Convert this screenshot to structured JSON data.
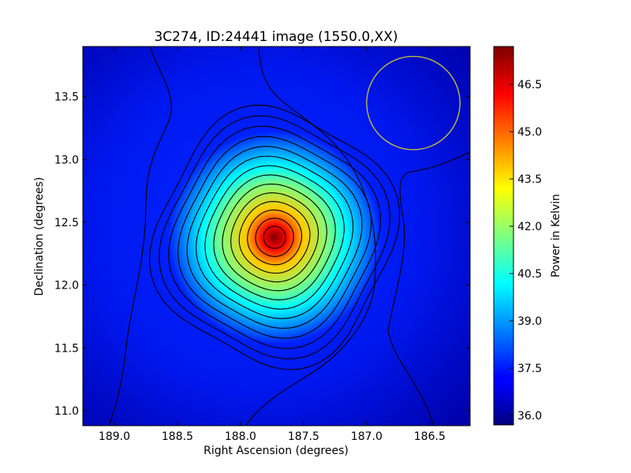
{
  "chart_data": {
    "type": "heatmap",
    "title": "3C274, ID:24441 image (1550.0,XX)",
    "xlabel": "Right Ascension (degrees)",
    "ylabel": "Declination (degrees)",
    "xlim": [
      189.25,
      186.18
    ],
    "ylim": [
      10.88,
      13.9
    ],
    "x_ticks": [
      "189.0",
      "188.5",
      "188.0",
      "187.5",
      "187.0",
      "186.5"
    ],
    "x_tick_values": [
      189.0,
      188.5,
      188.0,
      187.5,
      187.0,
      186.5
    ],
    "y_ticks": [
      "11.0",
      "11.5",
      "12.0",
      "12.5",
      "13.0",
      "13.5"
    ],
    "y_tick_values": [
      11.0,
      11.5,
      12.0,
      12.5,
      13.0,
      13.5
    ],
    "colormap": "jet",
    "colorbar": {
      "label": "Power in Kelvin",
      "range": [
        35.7,
        47.7
      ],
      "ticks": [
        "36.0",
        "37.5",
        "39.0",
        "40.5",
        "42.0",
        "43.5",
        "45.0",
        "46.5"
      ],
      "tick_values": [
        36.0,
        37.5,
        39.0,
        40.5,
        42.0,
        43.5,
        45.0,
        46.5
      ]
    },
    "source_peak": {
      "ra": 187.73,
      "dec": 12.38,
      "value": 47.7
    },
    "background_level": 37.0,
    "contours": "black",
    "beam_circle": {
      "ra": 186.63,
      "dec": 13.45,
      "radius_deg": 0.37,
      "color": "#c8c832"
    }
  }
}
